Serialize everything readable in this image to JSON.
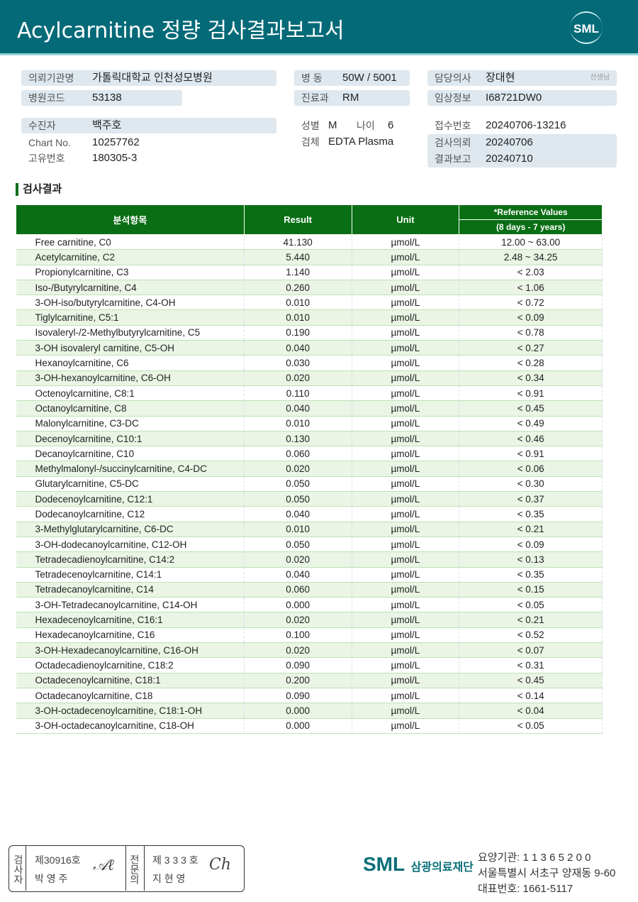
{
  "header": {
    "title": "Acylcarnitine 정량 검사결과보고서",
    "logo": "SML"
  },
  "info": {
    "institution": {
      "label": "의뢰기관명",
      "value": "가톨릭대학교 인천성모병원"
    },
    "hospital_code": {
      "label": "병원코드",
      "value": "53138"
    },
    "ward": {
      "label": "병  동",
      "value": "50W / 5001"
    },
    "department": {
      "label": "진료과",
      "value": "RM"
    },
    "doctor": {
      "label": "담당의사",
      "value": "장대현",
      "suffix": "선생님"
    },
    "clinical": {
      "label": "임상정보",
      "value": "I68721DW0"
    },
    "patient": {
      "label": "수진자",
      "value": "백주호"
    },
    "chart_no": {
      "label": "Chart No.",
      "value": "10257762"
    },
    "unique_no": {
      "label": "고유번호",
      "value": "180305-3"
    },
    "sex": {
      "label": "성별",
      "value": "M"
    },
    "age": {
      "label": "나이",
      "value": "6"
    },
    "specimen": {
      "label": "검체",
      "value": "EDTA Plasma"
    },
    "receipt_no": {
      "label": "접수번호",
      "value": "20240706-13216"
    },
    "request_date": {
      "label": "검사의뢰",
      "value": "20240706"
    },
    "report_date": {
      "label": "결과보고",
      "value": "20240710"
    }
  },
  "section_title": "검사결과",
  "table": {
    "headers": {
      "item": "분석항목",
      "result": "Result",
      "unit": "Unit",
      "ref": "*Reference Values",
      "ref_sub": "(8 days - 7 years)"
    },
    "rows": [
      [
        "Free carnitine, C0",
        "41.130",
        "µmol/L",
        "12.00 ~ 63.00"
      ],
      [
        "Acetylcarnitine, C2",
        "5.440",
        "µmol/L",
        "2.48 ~ 34.25"
      ],
      [
        "Propionylcarnitine, C3",
        "1.140",
        "µmol/L",
        "< 2.03"
      ],
      [
        "Iso-/Butyrylcarnitine, C4",
        "0.260",
        "µmol/L",
        "< 1.06"
      ],
      [
        "3-OH-iso/butyrylcarnitine, C4-OH",
        "0.010",
        "µmol/L",
        "< 0.72"
      ],
      [
        "Tiglylcarnitine, C5:1",
        "0.010",
        "µmol/L",
        "< 0.09"
      ],
      [
        "Isovaleryl-/2-Methylbutyrylcarnitine, C5",
        "0.190",
        "µmol/L",
        "< 0.78"
      ],
      [
        "3-OH isovaleryl carnitine, C5-OH",
        "0.040",
        "µmol/L",
        "< 0.27"
      ],
      [
        "Hexanoylcarnitine, C6",
        "0.030",
        "µmol/L",
        "< 0.28"
      ],
      [
        "3-OH-hexanoylcarnitine, C6-OH",
        "0.020",
        "µmol/L",
        "< 0.34"
      ],
      [
        "Octenoylcarnitine, C8:1",
        "0.110",
        "µmol/L",
        "< 0.91"
      ],
      [
        "Octanoylcarnitine, C8",
        "0.040",
        "µmol/L",
        "< 0.45"
      ],
      [
        "Malonylcarnitine, C3-DC",
        "0.010",
        "µmol/L",
        "< 0.49"
      ],
      [
        "Decenoylcarnitine, C10:1",
        "0.130",
        "µmol/L",
        "< 0.46"
      ],
      [
        "Decanoylcarnitine, C10",
        "0.060",
        "µmol/L",
        "< 0.91"
      ],
      [
        "Methylmalonyl-/succinylcarnitine, C4-DC",
        "0.020",
        "µmol/L",
        "< 0.06"
      ],
      [
        "Glutarylcarnitine, C5-DC",
        "0.050",
        "µmol/L",
        "< 0.30"
      ],
      [
        "Dodecenoylcarnitine, C12:1",
        "0.050",
        "µmol/L",
        "< 0.37"
      ],
      [
        "Dodecanoylcarnitine, C12",
        "0.040",
        "µmol/L",
        "< 0.35"
      ],
      [
        "3-Methylglutarylcarnitine, C6-DC",
        "0.010",
        "µmol/L",
        "< 0.21"
      ],
      [
        "3-OH-dodecanoylcarnitine, C12-OH",
        "0.050",
        "µmol/L",
        "< 0.09"
      ],
      [
        "Tetradecadienoylcarnitine, C14:2",
        "0.020",
        "µmol/L",
        "< 0.13"
      ],
      [
        "Tetradecenoylcarnitine, C14:1",
        "0.040",
        "µmol/L",
        "< 0.35"
      ],
      [
        "Tetradecanoylcarnitine, C14",
        "0.060",
        "µmol/L",
        "< 0.15"
      ],
      [
        "3-OH-Tetradecanoylcarnitine, C14-OH",
        "0.000",
        "µmol/L",
        "< 0.05"
      ],
      [
        "Hexadecenoylcarnitine, C16:1",
        "0.020",
        "µmol/L",
        "< 0.21"
      ],
      [
        "Hexadecanoylcarnitine, C16",
        "0.100",
        "µmol/L",
        "< 0.52"
      ],
      [
        "3-OH-Hexadecanoylcarnitine, C16-OH",
        "0.020",
        "µmol/L",
        "< 0.07"
      ],
      [
        "Octadecadienoylcarnitine, C18:2",
        "0.090",
        "µmol/L",
        "< 0.31"
      ],
      [
        "Octadecenoylcarnitine, C18:1",
        "0.200",
        "µmol/L",
        "< 0.45"
      ],
      [
        "Octadecanoylcarnitine, C18",
        "0.090",
        "µmol/L",
        "< 0.14"
      ],
      [
        "3-OH-octadecenoylcarnitine, C18:1-OH",
        "0.000",
        "µmol/L",
        "< 0.04"
      ],
      [
        "3-OH-octadecanoylcarnitine, C18-OH",
        "0.000",
        "µmol/L",
        "< 0.05"
      ]
    ]
  },
  "footer": {
    "tech_label": "검사자",
    "tech_no": "제30916호",
    "tech_name": "박 영 주",
    "doc_label": "전문의",
    "doc_no": "제 3 3 3 호",
    "doc_name": "지 현 영",
    "org_logo": "SML",
    "org_name": "삼광의료재단",
    "code": "요양기관: 1 1 3 6 5 2 0 0",
    "address": "서울특별시 서초구 양재동 9-60",
    "phone": "대표번호: 1661-5117"
  },
  "colors": {
    "header": "#046a78",
    "table_header": "#0a6e14",
    "row_alt": "#eaf5e5",
    "field_bg": "#dfe8ee"
  }
}
